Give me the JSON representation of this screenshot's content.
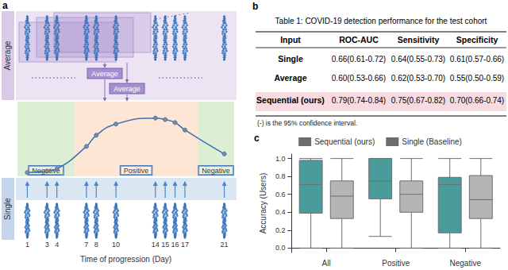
{
  "panels": [
    "a",
    "b",
    "c"
  ],
  "diagram": {
    "average_label": "Average",
    "window_label": "Average",
    "single_label": "Single",
    "x_label": "Time of progression (Day)",
    "days": [
      1,
      3,
      4,
      7,
      8,
      10,
      14,
      15,
      16,
      17,
      21
    ]
  },
  "table": {
    "title": "Table 1: COVID-19 detection performance for the test cohort",
    "header": [
      "Input",
      "ROC-AUC",
      "Sensitivity",
      "Specificity"
    ],
    "rows": [
      {
        "cells": [
          "Single",
          "0.66(0.61-0.72)",
          "0.64(0.55-0.73)",
          "0.61(0.57-0.66)"
        ]
      },
      {
        "cells": [
          "Average",
          "0.60(0.53-0.66)",
          "0.62(0.53-0.70)",
          "0.55(0.50-0.59)"
        ]
      },
      {
        "cells": [
          "Sequential (ours)",
          "0.79(0.74-0.84)",
          "0.75(0.67-0.82)",
          "0.70(0.66-0.74)"
        ],
        "color": "#f8dbe1"
      }
    ],
    "note": "(-) is the 95% confidence interval."
  },
  "chart_data": [
    {
      "type": "line",
      "x": [
        1,
        3,
        4,
        7,
        8,
        10,
        14,
        15,
        16,
        17,
        21
      ],
      "values": [
        0.05,
        0.07,
        0.1,
        0.4,
        0.55,
        0.7,
        0.78,
        0.76,
        0.72,
        0.62,
        0.3
      ],
      "xlim": [
        0,
        22
      ],
      "ylim": [
        0,
        1
      ],
      "tick_labels": false,
      "grid": false,
      "color": "#3b6fb6",
      "marker": "circle",
      "line_style": "solid",
      "phases": [
        {
          "label": "Negative",
          "start": 0,
          "end": 5.8,
          "color": "#dcefd5"
        },
        {
          "label": "Positive",
          "start": 5.8,
          "end": 18.3,
          "color": "#fde6d4"
        },
        {
          "label": "Negative",
          "start": 18.3,
          "end": 22,
          "color": "#dcefd5"
        }
      ]
    },
    {
      "type": "boxplot",
      "categories": [
        "All",
        "Positive",
        "Negative"
      ],
      "y_label": "Accuracy (Users)",
      "ylim": [
        -0.05,
        1.05
      ],
      "yticks": [
        {
          "value": 0,
          "label": "0.0"
        },
        0.2,
        0.4,
        0.6,
        0.8,
        {
          "value": 1,
          "label": "1.0"
        }
      ],
      "grid": false,
      "legend": "top",
      "series": [
        {
          "name": "Sequential (ours)",
          "color": "#4a9c9a",
          "values": [
            [
              0,
              0.39,
              0.71,
              0.98,
              1
            ],
            [
              0.13,
              0.55,
              0.75,
              1,
              1
            ],
            [
              0,
              0.17,
              0.71,
              0.79,
              1
            ]
          ]
        },
        {
          "name": "Single (Baseline)",
          "color": "#b5b5b5",
          "values": [
            [
              0,
              0.33,
              0.58,
              0.75,
              1
            ],
            [
              0,
              0.4,
              0.6,
              0.75,
              1
            ],
            [
              0,
              0.33,
              0.54,
              0.81,
              1
            ]
          ]
        }
      ]
    }
  ]
}
